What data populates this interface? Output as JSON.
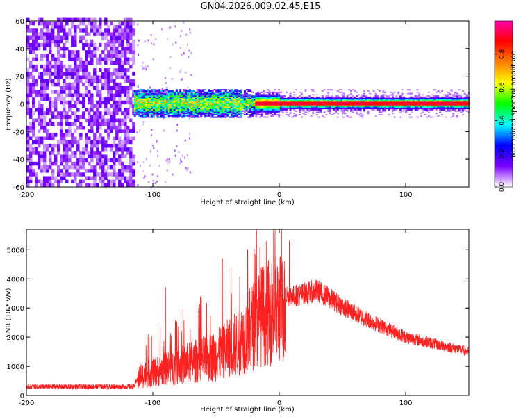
{
  "title": "GN04.2026.009.02.45.E15",
  "chart_data": [
    {
      "type": "heatmap",
      "xlabel": "Height of straight line (km)",
      "ylabel": "Frequency (Hz)",
      "xlim": [
        -200,
        150
      ],
      "ylim": [
        -60,
        60
      ],
      "xticks": [
        -200,
        -100,
        0,
        100
      ],
      "yticks": [
        -60,
        -40,
        -20,
        0,
        20,
        40,
        60
      ],
      "colorbar": {
        "label": "Normalized spectral amplitude",
        "range": [
          0,
          1
        ],
        "ticks": [
          "0.0",
          "0.2",
          "0.4",
          "0.6",
          "0.8"
        ],
        "colors": [
          "#ffffff",
          "#7b00ff",
          "#0000ff",
          "#00ffff",
          "#00ff00",
          "#ffff00",
          "#ff8000",
          "#ff0000",
          "#ff00aa"
        ]
      },
      "regions": [
        {
          "x": [
            -200,
            -115
          ],
          "freq_band": [
            -60,
            60
          ],
          "amplitude": 0.15,
          "description": "broadband noise"
        },
        {
          "x": [
            -115,
            150
          ],
          "center_freq": 0,
          "amplitude": 0.9,
          "description": "narrow band near 0 Hz"
        }
      ]
    },
    {
      "type": "line",
      "xlabel": "Height of straight line (km)",
      "ylabel": "SNR (10 * v/v)",
      "xlim": [
        -200,
        150
      ],
      "ylim": [
        0,
        5700
      ],
      "xticks": [
        -200,
        -100,
        0,
        100
      ],
      "yticks": [
        0,
        1000,
        2000,
        3000,
        4000,
        5000
      ],
      "color": "#ff2020",
      "series_profile": [
        {
          "x": -200,
          "y": 300
        },
        {
          "x": -115,
          "y": 300
        },
        {
          "x": -110,
          "y": 800
        },
        {
          "x": -80,
          "y": 1200
        },
        {
          "x": -50,
          "y": 1600
        },
        {
          "x": -30,
          "y": 2200
        },
        {
          "x": -15,
          "y": 3200
        },
        {
          "x": 0,
          "y": 3500
        },
        {
          "x": 10,
          "y": 3400
        },
        {
          "x": 30,
          "y": 3600
        },
        {
          "x": 60,
          "y": 2800
        },
        {
          "x": 100,
          "y": 2000
        },
        {
          "x": 150,
          "y": 1500
        }
      ],
      "peaks": [
        {
          "x": -18,
          "y": 5700
        },
        {
          "x": -25,
          "y": 5000
        },
        {
          "x": 8,
          "y": 5300
        },
        {
          "x": -45,
          "y": 4700
        },
        {
          "x": -90,
          "y": 3700
        }
      ]
    }
  ]
}
